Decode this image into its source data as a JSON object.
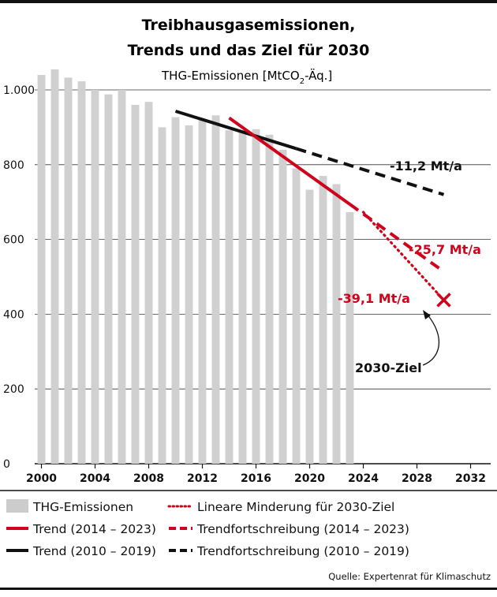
{
  "chart_data": {
    "type": "bar",
    "title_line1": "Treibhausgasemissionen,",
    "title_line2": "Trends und das Ziel für 2030",
    "subtitle_prefix": "THG-Emissionen [MtCO",
    "subtitle_sub": "2",
    "subtitle_suffix": "-Äq.]",
    "xlim": [
      1999.5,
      2033.5
    ],
    "ylim": [
      0,
      1000
    ],
    "yticks": [
      0,
      200,
      400,
      600,
      800,
      1000
    ],
    "ytick_labels": [
      "0",
      "200",
      "400",
      "600",
      "800",
      "1.000"
    ],
    "xticks": [
      2000,
      2004,
      2008,
      2012,
      2016,
      2020,
      2024,
      2028,
      2032
    ],
    "grid": true,
    "bars": {
      "name": "THG-Emissionen",
      "color": "#d0d0d0",
      "x": [
        2000,
        2001,
        2002,
        2003,
        2004,
        2005,
        2006,
        2007,
        2008,
        2009,
        2010,
        2011,
        2012,
        2013,
        2014,
        2015,
        2016,
        2017,
        2018,
        2019,
        2020,
        2021,
        2022,
        2023
      ],
      "values": [
        1040,
        1055,
        1033,
        1023,
        1000,
        988,
        1000,
        960,
        968,
        900,
        927,
        905,
        922,
        932,
        892,
        892,
        895,
        880,
        840,
        790,
        733,
        770,
        748,
        673
      ]
    },
    "lines": [
      {
        "name": "Trend (2010 – 2019)",
        "color": "#111111",
        "style": "solid",
        "x": [
          2010,
          2019
        ],
        "y": [
          943,
          843
        ]
      },
      {
        "name": "Trendfortschreibung (2010 – 2019)",
        "color": "#111111",
        "style": "dashed",
        "x": [
          2019,
          2030
        ],
        "y": [
          843,
          720
        ]
      },
      {
        "name": "Trend (2014 – 2023)",
        "color": "#d0021b",
        "style": "solid",
        "x": [
          2014,
          2023
        ],
        "y": [
          925,
          694
        ]
      },
      {
        "name": "Trendfortschreibung (2014 – 2023)",
        "color": "#d0021b",
        "style": "dashed",
        "x": [
          2023,
          2030
        ],
        "y": [
          694,
          514
        ]
      },
      {
        "name": "Lineare Minderung für 2030-Ziel",
        "color": "#d0021b",
        "style": "dotted",
        "x": [
          2024,
          2030
        ],
        "y": [
          673,
          438
        ]
      }
    ],
    "target": {
      "x": 2030,
      "y": 438,
      "label": "2030-Ziel",
      "color": "#d0021b"
    },
    "annotations": [
      {
        "text": "-11,2 Mt/a",
        "color": "#111111"
      },
      {
        "text": "-25,7 Mt/a",
        "color": "#d0021b"
      },
      {
        "text": "-39,1 Mt/a",
        "color": "#d0021b"
      }
    ],
    "legend": {
      "placement": "bottom",
      "items": [
        {
          "label": "THG-Emissionen",
          "kind": "bar",
          "color": "#cccccc"
        },
        {
          "label": "Lineare Minderung für 2030-Ziel",
          "kind": "dotted",
          "color": "#d0021b"
        },
        {
          "label": "Trend (2014 – 2023)",
          "kind": "solid",
          "color": "#d0021b"
        },
        {
          "label": "Trendfortschreibung (2014 – 2023)",
          "kind": "dashed",
          "color": "#d0021b"
        },
        {
          "label": "Trend (2010 – 2019)",
          "kind": "solid",
          "color": "#111111"
        },
        {
          "label": "Trendfortschreibung (2010 – 2019)",
          "kind": "dashed",
          "color": "#111111"
        }
      ]
    },
    "source": "Quelle: Expertenrat für Klimaschutz"
  }
}
